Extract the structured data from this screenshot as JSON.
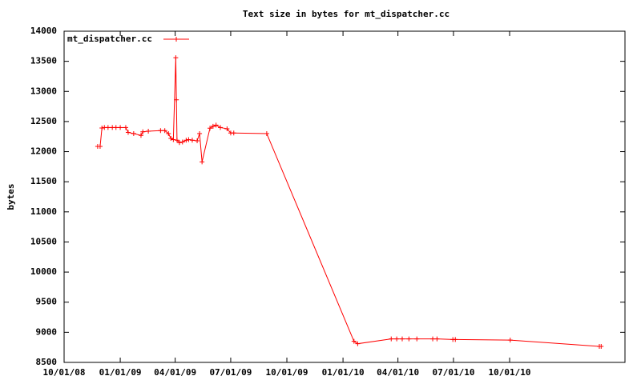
{
  "chart_data": {
    "type": "line",
    "title": "Text size in bytes for mt_dispatcher.cc",
    "y_label": "bytes",
    "legend": "top-left",
    "xlim": [
      "10/01/08",
      "04/08/11"
    ],
    "xticks": [
      "10/01/08",
      "01/01/09",
      "04/01/09",
      "07/01/09",
      "10/01/09",
      "01/01/10",
      "04/01/10",
      "07/01/10",
      "10/01/10"
    ],
    "ylim": [
      8500,
      14000
    ],
    "yticks": [
      8500,
      9000,
      9500,
      10000,
      10500,
      11000,
      11500,
      12000,
      12500,
      13000,
      13500,
      14000
    ],
    "x": [
      "11/25/08",
      "11/29/08",
      "12/02/08",
      "12/06/08",
      "12/12/08",
      "12/19/08",
      "12/25/08",
      "01/01/09",
      "01/10/09",
      "01/14/09",
      "01/23/09",
      "02/04/09",
      "02/07/09",
      "02/16/09",
      "03/08/09",
      "03/15/09",
      "03/21/09",
      "03/25/09",
      "03/29/09",
      "04/02/09",
      "04/03/09",
      "04/04/09",
      "04/08/09",
      "04/13/09",
      "04/19/09",
      "04/23/09",
      "04/29/09",
      "05/07/09",
      "05/11/09",
      "05/15/09",
      "05/28/09",
      "06/02/09",
      "06/07/09",
      "06/14/09",
      "06/25/09",
      "07/01/09",
      "07/06/09",
      "08/29/09",
      "01/19/10",
      "01/25/10",
      "03/21/10",
      "03/30/10",
      "04/08/10",
      "04/19/10",
      "05/02/10",
      "05/28/10",
      "06/04/10",
      "06/30/10",
      "07/04/10",
      "10/02/10",
      "02/25/11",
      "02/28/11"
    ],
    "series": [
      {
        "name": "mt_dispatcher.cc",
        "color": "#ff0000",
        "values": [
          12087,
          12087,
          12393,
          12400,
          12400,
          12400,
          12400,
          12400,
          12400,
          12320,
          12300,
          12270,
          12330,
          12340,
          12350,
          12350,
          12300,
          12220,
          12200,
          13560,
          12860,
          12190,
          12150,
          12160,
          12190,
          12200,
          12190,
          12180,
          12300,
          11830,
          12390,
          12420,
          12440,
          12400,
          12380,
          12310,
          12310,
          12300,
          8850,
          8810,
          8890,
          8890,
          8890,
          8890,
          8890,
          8890,
          8890,
          8880,
          8880,
          8870,
          8765,
          8765
        ]
      }
    ]
  }
}
